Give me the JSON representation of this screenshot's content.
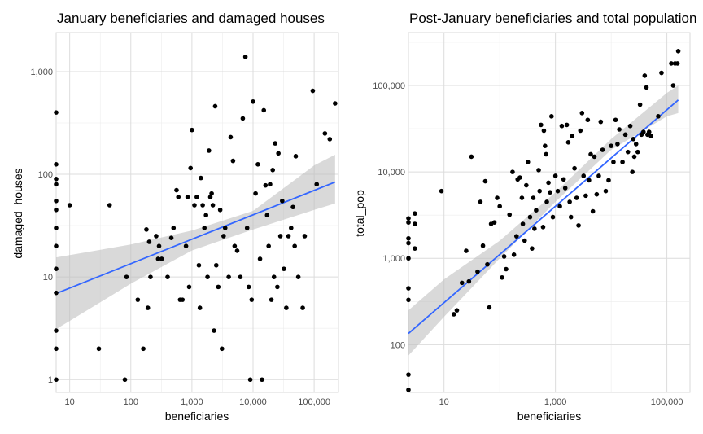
{
  "chart_data": [
    {
      "type": "scatter",
      "title": "January beneficiaries and damaged houses",
      "xlabel": "beneficiaries",
      "ylabel": "damaged_houses",
      "x_scale": "log10",
      "y_scale": "log10",
      "xlim": [
        6,
        250000
      ],
      "ylim": [
        0.75,
        2400
      ],
      "x_ticks": [
        10,
        100,
        1000,
        10000,
        100000
      ],
      "x_tick_labels": [
        "10",
        "100",
        "1,000",
        "10,000",
        "100,000"
      ],
      "y_ticks": [
        1,
        10,
        100,
        1000
      ],
      "y_tick_labels": [
        "1",
        "10",
        "100",
        "1,000"
      ],
      "grid": true,
      "point_color": "#000000",
      "trend_color": "#3366FF",
      "band_color": "#bfbfbf",
      "points": [
        [
          6,
          400
        ],
        [
          6,
          125
        ],
        [
          6,
          90
        ],
        [
          6,
          80
        ],
        [
          6,
          55
        ],
        [
          6,
          45
        ],
        [
          6,
          30
        ],
        [
          6,
          20
        ],
        [
          6,
          12
        ],
        [
          6,
          7
        ],
        [
          6,
          3
        ],
        [
          6,
          2
        ],
        [
          6,
          1
        ],
        [
          10,
          50
        ],
        [
          30,
          2
        ],
        [
          45,
          50
        ],
        [
          80,
          1
        ],
        [
          85,
          10
        ],
        [
          130,
          6
        ],
        [
          160,
          2
        ],
        [
          180,
          29
        ],
        [
          190,
          5
        ],
        [
          200,
          22
        ],
        [
          210,
          10
        ],
        [
          260,
          25
        ],
        [
          280,
          15
        ],
        [
          290,
          20
        ],
        [
          320,
          15
        ],
        [
          400,
          10
        ],
        [
          460,
          24
        ],
        [
          500,
          30
        ],
        [
          560,
          70
        ],
        [
          600,
          60
        ],
        [
          640,
          6
        ],
        [
          700,
          6
        ],
        [
          800,
          20
        ],
        [
          850,
          60
        ],
        [
          900,
          8
        ],
        [
          950,
          115
        ],
        [
          1000,
          270
        ],
        [
          1100,
          50
        ],
        [
          1200,
          60
        ],
        [
          1300,
          13
        ],
        [
          1350,
          5
        ],
        [
          1400,
          92
        ],
        [
          1500,
          50
        ],
        [
          1600,
          30
        ],
        [
          1700,
          40
        ],
        [
          1800,
          10
        ],
        [
          1900,
          170
        ],
        [
          2000,
          60
        ],
        [
          2100,
          65
        ],
        [
          2200,
          50
        ],
        [
          2300,
          3
        ],
        [
          2400,
          460
        ],
        [
          2500,
          13
        ],
        [
          2700,
          8
        ],
        [
          2900,
          45
        ],
        [
          3100,
          2
        ],
        [
          3300,
          25
        ],
        [
          3500,
          30
        ],
        [
          4000,
          10
        ],
        [
          4300,
          230
        ],
        [
          4700,
          135
        ],
        [
          5000,
          20
        ],
        [
          5500,
          18
        ],
        [
          6200,
          10
        ],
        [
          6800,
          350
        ],
        [
          7500,
          1390
        ],
        [
          8000,
          30
        ],
        [
          8500,
          8
        ],
        [
          9000,
          1
        ],
        [
          9500,
          6
        ],
        [
          10000,
          510
        ],
        [
          11000,
          65
        ],
        [
          12000,
          125
        ],
        [
          13000,
          15
        ],
        [
          14000,
          1
        ],
        [
          15000,
          420
        ],
        [
          16000,
          78
        ],
        [
          17000,
          40
        ],
        [
          18000,
          20
        ],
        [
          19000,
          80
        ],
        [
          20000,
          6
        ],
        [
          21000,
          110
        ],
        [
          22000,
          10
        ],
        [
          23000,
          200
        ],
        [
          25000,
          8
        ],
        [
          26000,
          160
        ],
        [
          28000,
          25
        ],
        [
          30000,
          55
        ],
        [
          32000,
          12
        ],
        [
          35000,
          5
        ],
        [
          38000,
          25
        ],
        [
          42000,
          30
        ],
        [
          45000,
          48
        ],
        [
          48000,
          20
        ],
        [
          50000,
          150
        ],
        [
          55000,
          10
        ],
        [
          65000,
          5
        ],
        [
          70000,
          25
        ],
        [
          95000,
          650
        ],
        [
          110000,
          80
        ],
        [
          150000,
          250
        ],
        [
          180000,
          220
        ],
        [
          220000,
          490
        ]
      ],
      "trend": {
        "x": [
          6,
          220000
        ],
        "y": [
          6.9,
          84
        ]
      },
      "band": {
        "x": [
          6,
          100,
          1000,
          10000,
          100000,
          220000
        ],
        "lower": [
          3.1,
          8.6,
          18.1,
          29.0,
          45.0,
          52.0
        ],
        "upper": [
          15.5,
          20.7,
          28.3,
          44.0,
          122.0,
          155.0
        ]
      }
    },
    {
      "type": "scatter",
      "title": "Post-January beneficiaries and total population",
      "xlabel": "beneficiaries",
      "ylabel": "total_pop",
      "x_scale": "log10",
      "y_scale": "log10",
      "xlim": [
        2.3,
        260000
      ],
      "ylim": [
        28,
        410000
      ],
      "x_ticks": [
        10,
        1000,
        100000
      ],
      "x_tick_labels": [
        "10",
        "1,000",
        "100,000"
      ],
      "y_ticks": [
        100,
        1000,
        10000,
        100000
      ],
      "y_tick_labels": [
        "100",
        "1,000",
        "10,000",
        "100,000"
      ],
      "grid": true,
      "point_color": "#000000",
      "trend_color": "#3366FF",
      "band_color": "#bfbfbf",
      "points": [
        [
          2.3,
          2900
        ],
        [
          2.3,
          2600
        ],
        [
          2.3,
          1700
        ],
        [
          2.3,
          1500
        ],
        [
          2.3,
          1000
        ],
        [
          2.3,
          450
        ],
        [
          2.3,
          330
        ],
        [
          2.3,
          45
        ],
        [
          2.3,
          30
        ],
        [
          3,
          3300
        ],
        [
          3,
          2500
        ],
        [
          3,
          1300
        ],
        [
          9,
          6000
        ],
        [
          15,
          225
        ],
        [
          17,
          250
        ],
        [
          21,
          520
        ],
        [
          25,
          1220
        ],
        [
          28,
          540
        ],
        [
          31,
          15000
        ],
        [
          40,
          700
        ],
        [
          45,
          4500
        ],
        [
          50,
          1400
        ],
        [
          55,
          7800
        ],
        [
          60,
          850
        ],
        [
          65,
          270
        ],
        [
          70,
          2500
        ],
        [
          80,
          2600
        ],
        [
          90,
          5000
        ],
        [
          100,
          4000
        ],
        [
          110,
          600
        ],
        [
          120,
          1050
        ],
        [
          130,
          750
        ],
        [
          150,
          3200
        ],
        [
          170,
          10000
        ],
        [
          180,
          1100
        ],
        [
          200,
          1800
        ],
        [
          210,
          8200
        ],
        [
          230,
          8600
        ],
        [
          250,
          5000
        ],
        [
          260,
          2500
        ],
        [
          280,
          1600
        ],
        [
          300,
          7000
        ],
        [
          320,
          13000
        ],
        [
          350,
          3000
        ],
        [
          380,
          1300
        ],
        [
          400,
          5000
        ],
        [
          420,
          2200
        ],
        [
          450,
          3600
        ],
        [
          500,
          10500
        ],
        [
          520,
          6000
        ],
        [
          550,
          35000
        ],
        [
          600,
          2300
        ],
        [
          620,
          30000
        ],
        [
          650,
          20000
        ],
        [
          680,
          16000
        ],
        [
          700,
          4500
        ],
        [
          750,
          7500
        ],
        [
          800,
          5800
        ],
        [
          850,
          44000
        ],
        [
          900,
          3000
        ],
        [
          1000,
          9000
        ],
        [
          1100,
          6000
        ],
        [
          1200,
          4000
        ],
        [
          1300,
          34000
        ],
        [
          1400,
          8200
        ],
        [
          1500,
          6500
        ],
        [
          1600,
          35000
        ],
        [
          1700,
          22000
        ],
        [
          1800,
          4500
        ],
        [
          1900,
          3000
        ],
        [
          2000,
          26000
        ],
        [
          2200,
          11000
        ],
        [
          2400,
          5000
        ],
        [
          2600,
          2400
        ],
        [
          2800,
          30000
        ],
        [
          3000,
          48000
        ],
        [
          3200,
          9000
        ],
        [
          3500,
          5300
        ],
        [
          3800,
          40000
        ],
        [
          4000,
          8000
        ],
        [
          4300,
          16000
        ],
        [
          4700,
          3500
        ],
        [
          5000,
          15000
        ],
        [
          5500,
          5500
        ],
        [
          6000,
          9000
        ],
        [
          6500,
          38000
        ],
        [
          7000,
          18000
        ],
        [
          8000,
          6000
        ],
        [
          9000,
          8000
        ],
        [
          10000,
          20000
        ],
        [
          11000,
          13000
        ],
        [
          12000,
          40000
        ],
        [
          13000,
          21000
        ],
        [
          14000,
          31000
        ],
        [
          16000,
          13000
        ],
        [
          18000,
          27000
        ],
        [
          20000,
          17000
        ],
        [
          22000,
          34000
        ],
        [
          24000,
          10000
        ],
        [
          25000,
          24000
        ],
        [
          26000,
          15000
        ],
        [
          28000,
          21000
        ],
        [
          30000,
          17000
        ],
        [
          33000,
          60000
        ],
        [
          35000,
          27000
        ],
        [
          38000,
          29000
        ],
        [
          40000,
          130000
        ],
        [
          43000,
          95000
        ],
        [
          45000,
          27000
        ],
        [
          48000,
          29000
        ],
        [
          52000,
          26000
        ],
        [
          70000,
          44000
        ],
        [
          80000,
          140000
        ],
        [
          120000,
          180000
        ],
        [
          130000,
          100000
        ],
        [
          140000,
          180000
        ],
        [
          155000,
          180000
        ],
        [
          160000,
          250000
        ]
      ],
      "trend": {
        "x": [
          2.3,
          160000
        ],
        "y": [
          135,
          68000
        ]
      },
      "band": {
        "x": [
          2.3,
          10,
          100,
          1000,
          10000,
          100000,
          160000
        ],
        "lower": [
          75,
          210,
          1000,
          4500,
          18000,
          44000,
          48000
        ],
        "upper": [
          250,
          570,
          1600,
          5800,
          24000,
          82000,
          100000
        ]
      }
    }
  ]
}
